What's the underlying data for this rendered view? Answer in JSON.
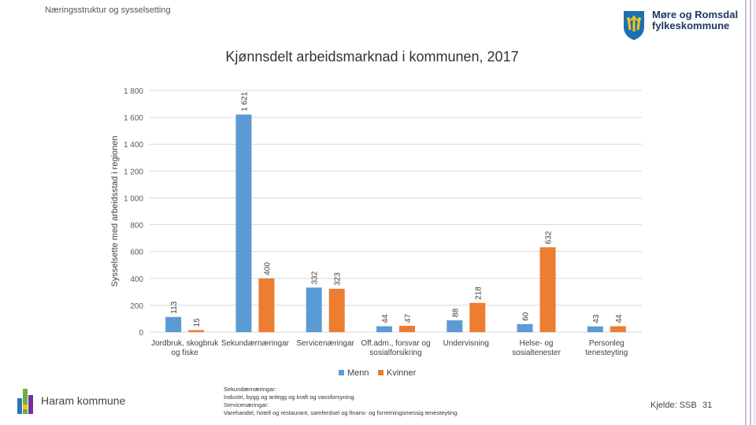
{
  "header": {
    "subtitle": "Næringsstruktur og sysselsetting",
    "logo_line1": "Møre og Romsdal",
    "logo_line2": "fylkeskommune"
  },
  "footer": {
    "municipality": "Haram kommune",
    "note_lines": [
      "Sekundærnæringar:",
      "Industri, bygg og anlegg og kraft og vassforsyning.",
      "Servicenæringar:",
      "Varehandel, hotell og restaurant, samferdsel og finans- og forretningsmessig tenesteyting."
    ],
    "source": "Kjelde: SSB",
    "page_number": "31"
  },
  "colors": {
    "menn": "#5B9BD5",
    "kvinner": "#ED7D31",
    "grid": "#d9d9d9",
    "brand": "#1f3864"
  },
  "chart_data": {
    "type": "bar",
    "title": "Kjønnsdelt arbeidsmarknad i kommunen, 2017",
    "ylabel": "Sysselsette med arbeidsstad i regionen",
    "xlabel": "",
    "ylim": [
      0,
      1800
    ],
    "yticks": [
      0,
      200,
      400,
      600,
      800,
      1000,
      1200,
      1400,
      1600,
      1800
    ],
    "ytick_labels": [
      "0",
      "200",
      "400",
      "600",
      "800",
      "1 000",
      "1 200",
      "1 400",
      "1 600",
      "1 800"
    ],
    "categories": [
      [
        "Jordbruk, skogbruk",
        "og fiske"
      ],
      [
        "Sekundærnæringar"
      ],
      [
        "Servicenæringar"
      ],
      [
        "Off.adm., forsvar og",
        "sosialforsikring"
      ],
      [
        "Undervisning"
      ],
      [
        "Helse- og",
        "sosialtenester"
      ],
      [
        "Personleg",
        "tenesteyting"
      ]
    ],
    "series": [
      {
        "name": "Menn",
        "values": [
          113,
          1621,
          332,
          44,
          88,
          60,
          43
        ],
        "labels": [
          "113",
          "1 621",
          "332",
          "44",
          "88",
          "60",
          "43"
        ]
      },
      {
        "name": "Kvinner",
        "values": [
          15,
          400,
          323,
          47,
          218,
          632,
          44
        ],
        "labels": [
          "15",
          "400",
          "323",
          "47",
          "218",
          "632",
          "44"
        ]
      }
    ],
    "grid": true,
    "legend_position": "bottom"
  }
}
